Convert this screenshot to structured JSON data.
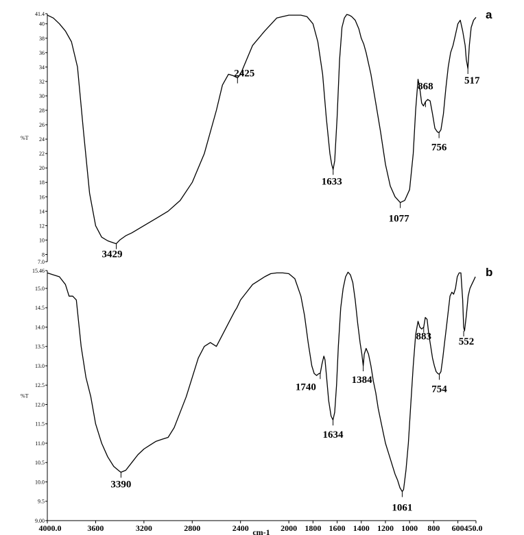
{
  "chart_data": [
    {
      "type": "line",
      "panel_label": "a",
      "ylabel": "%T",
      "ylim": [
        7.0,
        41.4
      ],
      "yticks": [
        "7.0",
        "8",
        "10",
        "12",
        "14",
        "16",
        "18",
        "20",
        "22",
        "24",
        "26",
        "28",
        "30",
        "32",
        "34",
        "36",
        "38",
        "40",
        "41.4"
      ],
      "xlim": [
        4000,
        450
      ],
      "x": [
        4000,
        3950,
        3900,
        3850,
        3800,
        3750,
        3700,
        3650,
        3600,
        3550,
        3500,
        3450,
        3429,
        3400,
        3350,
        3300,
        3200,
        3100,
        3000,
        2900,
        2800,
        2700,
        2600,
        2550,
        2500,
        2460,
        2425,
        2400,
        2350,
        2300,
        2200,
        2100,
        2000,
        1900,
        1850,
        1800,
        1760,
        1720,
        1690,
        1660,
        1645,
        1633,
        1620,
        1600,
        1580,
        1560,
        1540,
        1520,
        1500,
        1480,
        1450,
        1420,
        1400,
        1380,
        1360,
        1320,
        1280,
        1240,
        1200,
        1160,
        1120,
        1077,
        1040,
        1000,
        970,
        950,
        930,
        915,
        900,
        885,
        868,
        850,
        830,
        810,
        790,
        770,
        756,
        740,
        720,
        700,
        680,
        660,
        640,
        620,
        600,
        580,
        560,
        540,
        530,
        517,
        505,
        490,
        470,
        450
      ],
      "series": [
        {
          "values": [
            41.2,
            40.8,
            40.0,
            39.0,
            37.5,
            34.0,
            25.0,
            16.5,
            12.0,
            10.4,
            9.9,
            9.6,
            9.5,
            10.0,
            10.6,
            11.0,
            12.0,
            13.0,
            14.0,
            15.5,
            18.0,
            22.0,
            28.0,
            31.5,
            33.0,
            32.8,
            32.5,
            33.0,
            35.0,
            37.0,
            39.0,
            40.8,
            41.2,
            41.2,
            41.0,
            40.0,
            37.5,
            33.0,
            27.0,
            22.0,
            20.5,
            19.8,
            21.0,
            27.0,
            35.0,
            39.5,
            40.8,
            41.3,
            41.2,
            41.0,
            40.5,
            39.3,
            38.0,
            37.2,
            36.0,
            33.0,
            29.0,
            25.0,
            20.5,
            17.5,
            16.0,
            15.2,
            15.5,
            17.0,
            22.0,
            28.0,
            32.3,
            31.0,
            29.0,
            28.6,
            29.2,
            29.5,
            29.3,
            27.5,
            25.5,
            25.0,
            24.9,
            25.3,
            27.5,
            31.0,
            34.0,
            36.0,
            37.0,
            38.5,
            40.0,
            40.5,
            39.0,
            37.0,
            35.0,
            33.8,
            37.0,
            39.5,
            40.5,
            40.9
          ]
        }
      ],
      "annotations": [
        {
          "label": "3429",
          "x": 3429,
          "y": 9.5
        },
        {
          "label": "2425",
          "x": 2425,
          "y": 32.5
        },
        {
          "label": "1633",
          "x": 1633,
          "y": 19.8
        },
        {
          "label": "1077",
          "x": 1077,
          "y": 15.2
        },
        {
          "label": "868",
          "x": 868,
          "y": 29.2
        },
        {
          "label": "756",
          "x": 756,
          "y": 24.9
        },
        {
          "label": "517",
          "x": 517,
          "y": 33.8
        }
      ]
    },
    {
      "type": "line",
      "panel_label": "b",
      "ylabel": "%T",
      "ylim": [
        9.0,
        15.46
      ],
      "yticks": [
        "9.00",
        "9.5",
        "10.0",
        "10.5",
        "11.0",
        "11.5",
        "12.0",
        "12.5",
        "13.0",
        "13.5",
        "14.0",
        "14.5",
        "15.0",
        "15.46"
      ],
      "xlim": [
        4000,
        450
      ],
      "xlabel": "cm-1",
      "xticks": [
        "4000.0",
        "3600",
        "3200",
        "2800",
        "2400",
        "2000",
        "1800",
        "1600",
        "1400",
        "1200",
        "1000",
        "800",
        "600",
        "450.0"
      ],
      "x": [
        4000,
        3950,
        3900,
        3850,
        3820,
        3790,
        3760,
        3720,
        3680,
        3640,
        3600,
        3550,
        3500,
        3450,
        3400,
        3390,
        3350,
        3300,
        3250,
        3200,
        3150,
        3100,
        3050,
        3000,
        2950,
        2900,
        2850,
        2800,
        2750,
        2700,
        2650,
        2600,
        2550,
        2500,
        2450,
        2430,
        2400,
        2350,
        2300,
        2250,
        2200,
        2150,
        2100,
        2050,
        2000,
        1950,
        1900,
        1870,
        1840,
        1810,
        1790,
        1770,
        1750,
        1740,
        1725,
        1710,
        1700,
        1690,
        1670,
        1650,
        1634,
        1620,
        1605,
        1590,
        1570,
        1550,
        1530,
        1510,
        1490,
        1470,
        1450,
        1430,
        1410,
        1395,
        1384,
        1375,
        1360,
        1340,
        1320,
        1300,
        1280,
        1260,
        1240,
        1220,
        1200,
        1180,
        1160,
        1140,
        1120,
        1100,
        1080,
        1061,
        1050,
        1030,
        1010,
        990,
        970,
        950,
        930,
        915,
        900,
        883,
        870,
        855,
        840,
        825,
        810,
        795,
        780,
        766,
        754,
        740,
        725,
        710,
        695,
        680,
        665,
        650,
        635,
        620,
        605,
        590,
        575,
        560,
        552,
        545,
        530,
        515,
        500,
        485,
        470,
        455
      ],
      "series": [
        {
          "values": [
            15.4,
            15.35,
            15.3,
            15.1,
            14.8,
            14.8,
            14.7,
            13.5,
            12.7,
            12.2,
            11.5,
            11.0,
            10.65,
            10.4,
            10.27,
            10.25,
            10.3,
            10.5,
            10.7,
            10.85,
            10.95,
            11.05,
            11.1,
            11.15,
            11.4,
            11.8,
            12.2,
            12.7,
            13.2,
            13.5,
            13.6,
            13.5,
            13.8,
            14.1,
            14.4,
            14.5,
            14.7,
            14.9,
            15.1,
            15.2,
            15.3,
            15.38,
            15.4,
            15.4,
            15.38,
            15.25,
            14.8,
            14.3,
            13.6,
            13.0,
            12.8,
            12.75,
            12.8,
            12.8,
            13.05,
            13.25,
            13.15,
            12.8,
            12.1,
            11.7,
            11.6,
            11.8,
            12.5,
            13.5,
            14.5,
            15.0,
            15.3,
            15.42,
            15.35,
            15.15,
            14.7,
            14.1,
            13.6,
            13.3,
            13.0,
            13.3,
            13.45,
            13.3,
            13.0,
            12.6,
            12.3,
            11.9,
            11.6,
            11.3,
            11.0,
            10.8,
            10.6,
            10.4,
            10.2,
            10.05,
            9.85,
            9.75,
            9.8,
            10.3,
            11.0,
            12.0,
            13.0,
            13.8,
            14.15,
            14.0,
            13.95,
            14.0,
            14.25,
            14.2,
            13.8,
            13.5,
            13.2,
            13.0,
            12.85,
            12.8,
            12.78,
            12.85,
            13.2,
            13.6,
            14.0,
            14.4,
            14.8,
            14.9,
            14.85,
            15.0,
            15.3,
            15.4,
            15.4,
            14.7,
            14.0,
            13.9,
            14.3,
            14.8,
            15.0,
            15.1,
            15.2,
            15.3
          ]
        }
      ],
      "annotations": [
        {
          "label": "3390",
          "x": 3390,
          "y": 10.25
        },
        {
          "label": "1740",
          "x": 1740,
          "y": 12.8
        },
        {
          "label": "1634",
          "x": 1634,
          "y": 11.6
        },
        {
          "label": "1384",
          "x": 1384,
          "y": 13.0
        },
        {
          "label": "1061",
          "x": 1061,
          "y": 9.75
        },
        {
          "label": "883",
          "x": 883,
          "y": 14.0
        },
        {
          "label": "754",
          "x": 754,
          "y": 12.78
        },
        {
          "label": "552",
          "x": 552,
          "y": 13.9
        }
      ]
    }
  ]
}
